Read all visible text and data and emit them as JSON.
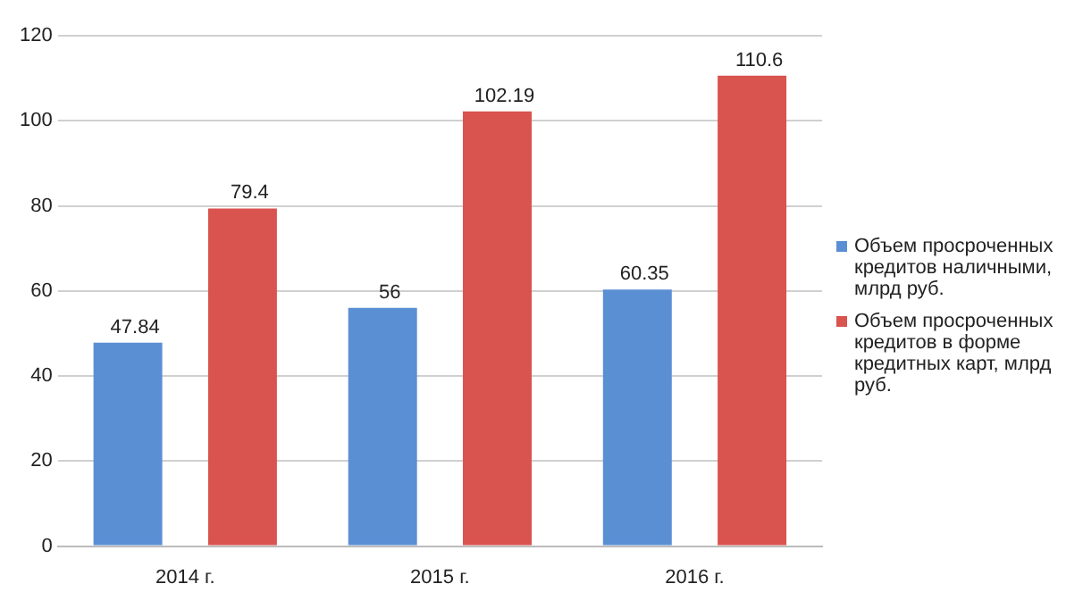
{
  "chart_data": {
    "type": "bar",
    "categories": [
      "2014 г.",
      "2015 г.",
      "2016 г."
    ],
    "series": [
      {
        "name": "Объем просроченных кредитов наличными, млрд руб.",
        "color": "#5a8fd4",
        "values": [
          47.84,
          56,
          60.35
        ]
      },
      {
        "name": "Объем просроченных кредитов в форме кредитных карт, млрд руб.",
        "color": "#d9534f",
        "values": [
          79.4,
          102.19,
          110.6
        ]
      }
    ],
    "ylim": [
      0,
      120
    ],
    "yticks": [
      0,
      20,
      40,
      60,
      80,
      100,
      120
    ],
    "grid": "y",
    "legend": "right",
    "data_labels": true
  }
}
